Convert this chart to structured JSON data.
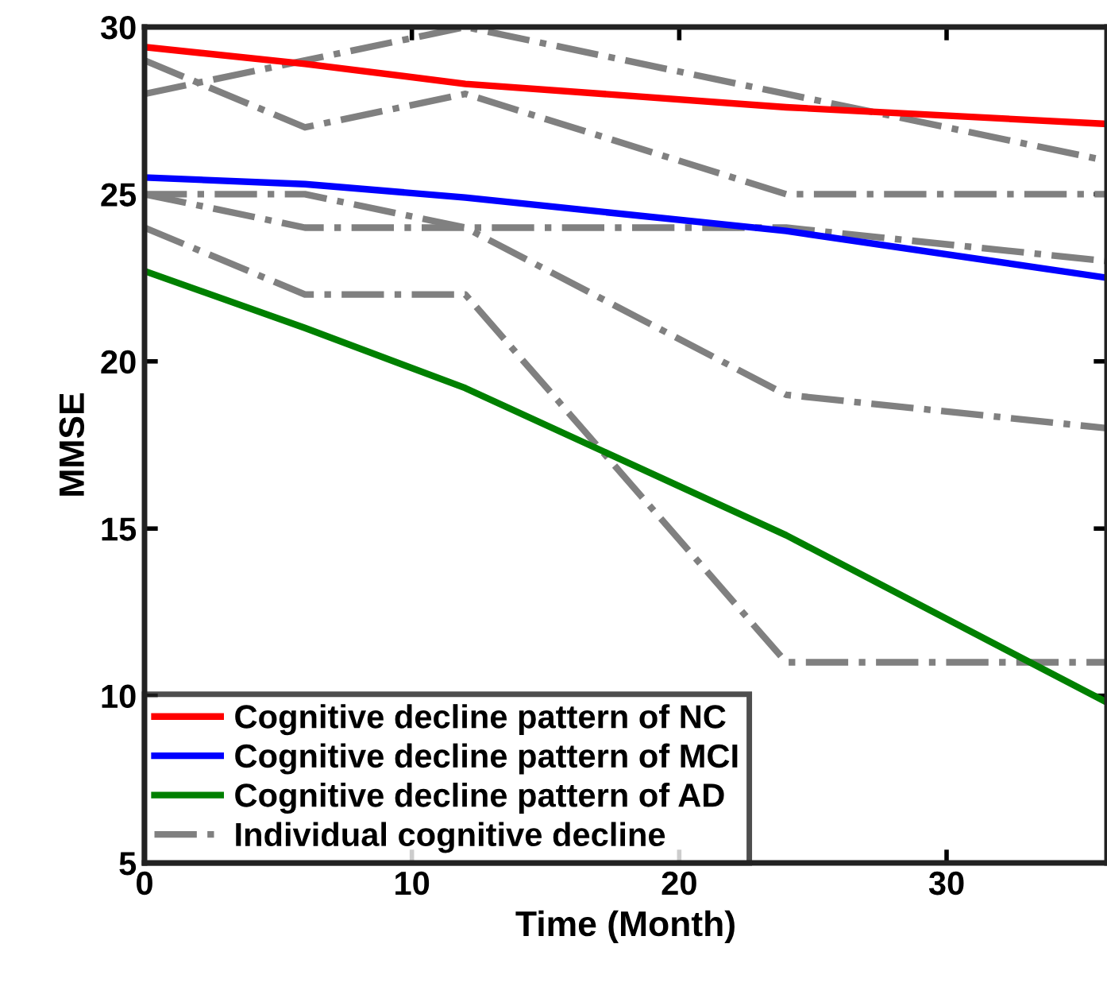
{
  "chart_data": {
    "type": "line",
    "xlabel": "Time (Month)",
    "ylabel": "MMSE",
    "x": [
      0,
      6,
      12,
      24,
      36
    ],
    "xlim": [
      0,
      36
    ],
    "xticks": [
      0,
      10,
      20,
      30
    ],
    "ylim": [
      5,
      30
    ],
    "yticks": [
      5,
      10,
      15,
      20,
      25,
      30
    ],
    "grid": false,
    "legend": "bottom left",
    "marker": "none",
    "series": [
      {
        "name": "Cognitive decline pattern of NC",
        "color": "#ff0000",
        "values": [
          29.4,
          28.9,
          28.3,
          27.6,
          27.1
        ],
        "line_style": "solid"
      },
      {
        "name": "Cognitive decline pattern of MCI",
        "color": "#0000ff",
        "values": [
          25.5,
          25.3,
          24.9,
          23.9,
          22.5
        ],
        "line_style": "solid"
      },
      {
        "name": "Cognitive decline pattern of AD",
        "color": "#008000",
        "values": [
          22.7,
          21.0,
          19.2,
          14.8,
          9.8
        ],
        "line_style": "solid"
      },
      {
        "name": "Individual cognitive decline",
        "color": "#808080",
        "values": [
          28,
          29,
          30,
          28,
          26
        ],
        "line_style": "dashdot"
      },
      {
        "color": "#808080",
        "values": [
          29,
          27,
          28,
          25,
          25
        ],
        "line_style": "dashdot"
      },
      {
        "color": "#808080",
        "values": [
          25,
          25,
          24,
          19,
          18
        ],
        "line_style": "dashdot"
      },
      {
        "color": "#808080",
        "values": [
          25,
          24,
          24,
          24,
          23
        ],
        "line_style": "dashdot"
      },
      {
        "color": "#808080",
        "values": [
          24,
          22,
          22,
          11,
          11
        ],
        "line_style": "dashdot"
      }
    ]
  }
}
